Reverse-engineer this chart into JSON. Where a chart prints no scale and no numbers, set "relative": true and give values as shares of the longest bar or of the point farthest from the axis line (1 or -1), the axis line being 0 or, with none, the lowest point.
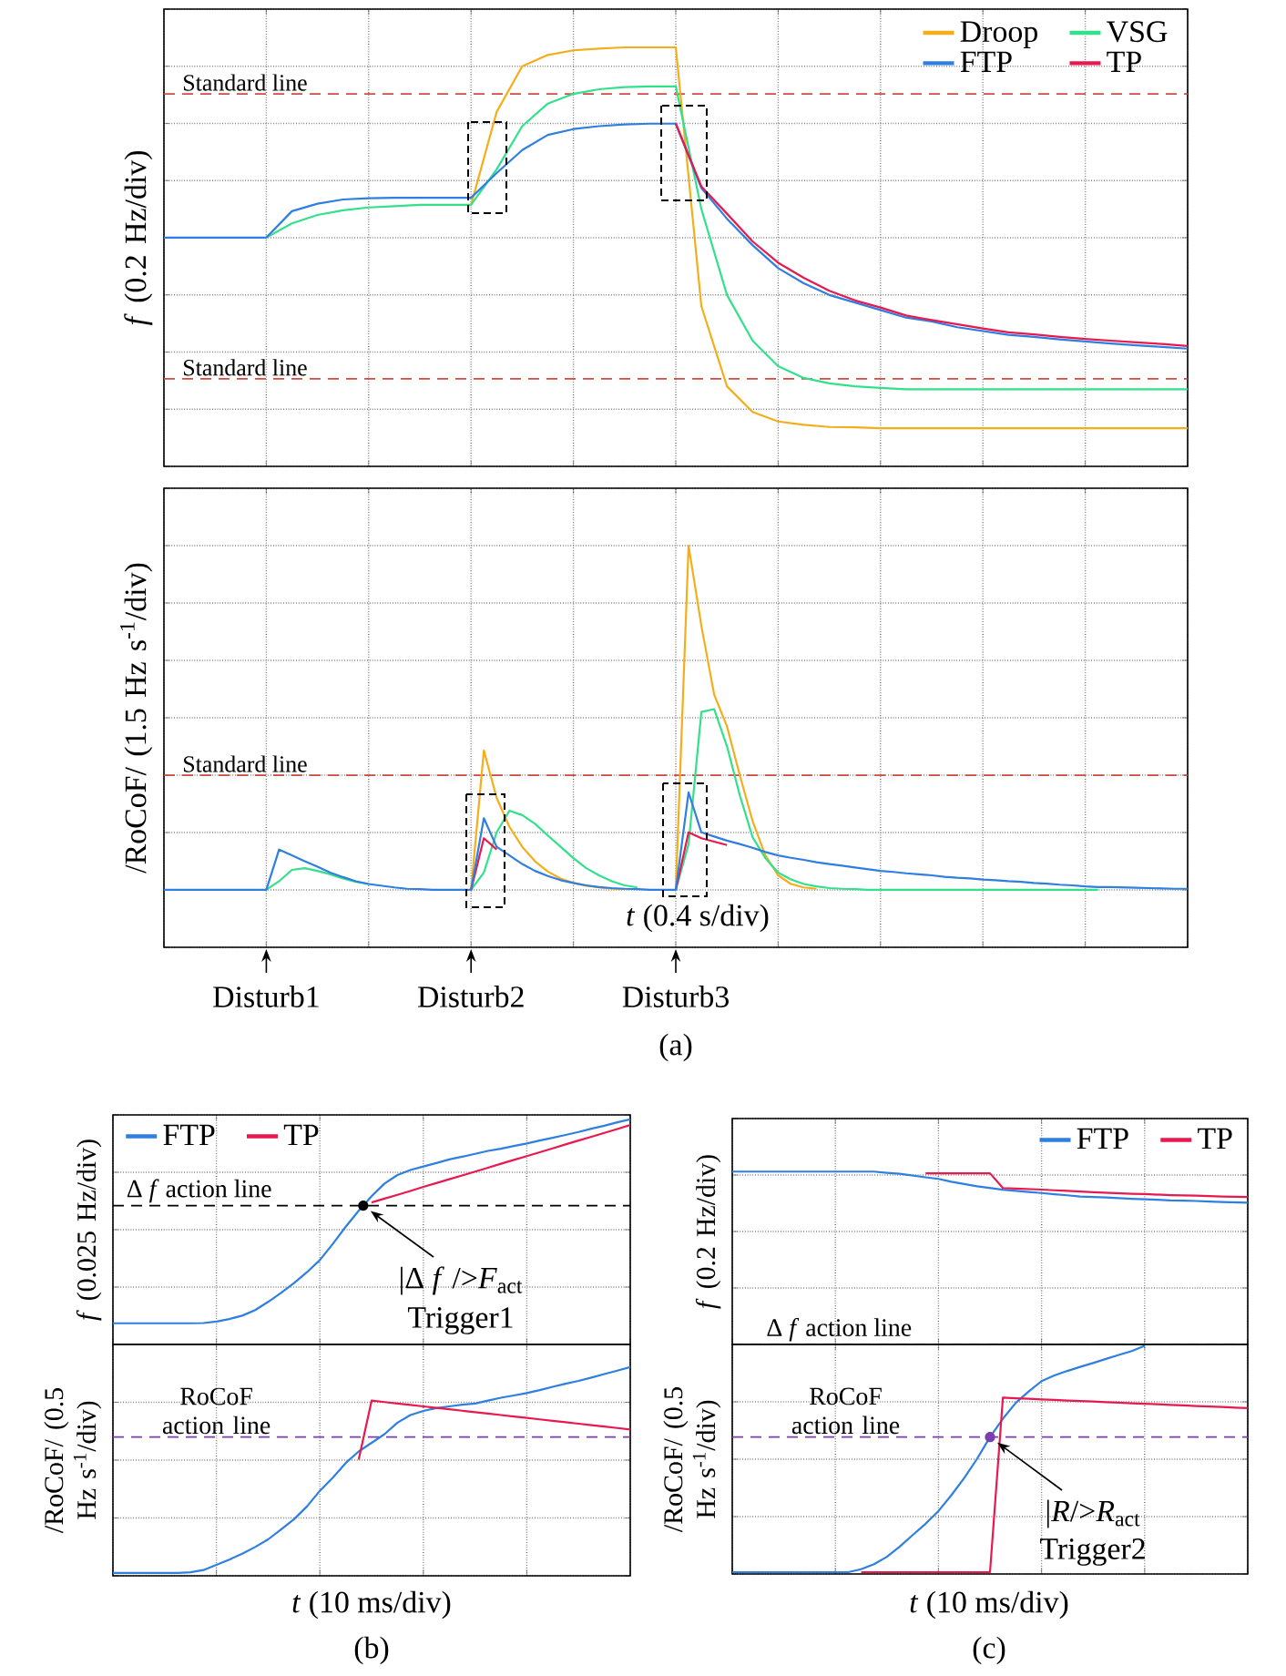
{
  "chart_data": [
    {
      "type": "line",
      "relative": true,
      "grid": true,
      "legend": "top right",
      "ylabel": "*f* (0.2 Hz/div)",
      "categories": [
        null,
        null,
        null,
        null,
        null,
        null,
        null,
        null,
        null,
        null,
        null,
        null,
        null,
        null,
        null,
        null,
        null,
        null,
        null,
        null,
        null,
        null,
        null,
        null,
        null,
        null,
        null,
        null,
        null,
        null,
        null,
        null,
        null,
        null,
        null,
        null,
        null,
        null,
        null,
        null,
        null
      ],
      "series": [
        {
          "name": "Droop",
          "color": "#f5ae1b",
          "values": [
            null,
            null,
            null,
            null,
            null,
            null,
            null,
            null,
            null,
            null,
            null,
            null,
            0.624,
            0.846,
            0.955,
            0.982,
            0.993,
            0.997,
            1.0,
            1.0,
            1.0,
            0.382,
            0.191,
            0.13,
            0.107,
            0.099,
            0.094,
            0.093,
            0.091,
            0.091,
            0.091,
            0.091,
            0.091,
            0.091,
            0.091,
            0.091,
            0.091,
            0.091,
            0.091,
            0.091,
            0.091
          ]
        },
        {
          "name": "VSG",
          "color": "#33e08c",
          "values": [
            null,
            null,
            null,
            null,
            0.546,
            0.58,
            0.6,
            0.611,
            0.618,
            0.621,
            0.624,
            0.624,
            0.624,
            0.709,
            0.812,
            0.866,
            0.889,
            0.9,
            0.905,
            0.907,
            0.907,
            0.614,
            0.409,
            0.3,
            0.239,
            0.211,
            0.198,
            0.191,
            0.187,
            0.184,
            0.184,
            0.184,
            0.184,
            0.184,
            0.184,
            0.184,
            0.184,
            0.184,
            0.184,
            0.184,
            0.184
          ]
        },
        {
          "name": "FTP",
          "color": "#2e7fe0",
          "values": [
            0.546,
            0.546,
            0.546,
            0.546,
            0.546,
            0.609,
            0.627,
            0.637,
            0.64,
            0.641,
            0.641,
            0.641,
            0.641,
            0.7,
            0.755,
            0.791,
            0.805,
            0.812,
            0.816,
            0.818,
            0.818,
            0.664,
            0.591,
            0.528,
            0.473,
            0.437,
            0.409,
            0.391,
            0.373,
            0.355,
            0.346,
            0.332,
            0.323,
            0.314,
            0.309,
            0.303,
            0.298,
            0.293,
            0.289,
            0.285,
            0.281
          ]
        },
        {
          "name": "TP",
          "color": "#e8194f",
          "values": [
            null,
            null,
            null,
            null,
            null,
            null,
            null,
            null,
            null,
            null,
            null,
            null,
            null,
            null,
            null,
            null,
            null,
            null,
            null,
            null,
            0.818,
            0.668,
            0.603,
            0.537,
            0.486,
            0.45,
            0.419,
            0.396,
            0.379,
            0.36,
            0.349,
            0.339,
            0.329,
            0.32,
            0.315,
            0.309,
            0.304,
            0.3,
            0.296,
            0.292,
            0.287
          ]
        }
      ],
      "ref_lines": [
        {
          "axis": "y",
          "value": 0.889,
          "label": "Standard line",
          "color": "#d24b3e",
          "line_style": "dashed"
        },
        {
          "axis": "y",
          "value": 0.209,
          "label": "Standard line",
          "color": "#d24b3e",
          "line_style": "dashed"
        }
      ]
    },
    {
      "type": "line",
      "relative": true,
      "grid": true,
      "ylabel": "/RoCoF/ (1.5 Hz s$^{-1}$/div)",
      "xlabel": "*t* (0.4 s/div)",
      "categories": [
        null,
        null,
        null,
        null,
        null,
        null,
        null,
        null,
        null,
        null,
        null,
        null,
        null,
        null,
        null,
        null,
        null,
        null,
        null,
        null,
        null,
        null,
        null,
        null,
        null,
        null,
        null,
        null,
        null,
        null,
        null,
        null,
        null,
        null,
        null,
        null,
        null,
        null,
        null,
        null,
        null,
        null,
        null,
        null,
        null,
        null,
        null,
        null,
        null,
        null,
        null,
        null,
        null,
        null,
        null,
        null,
        null,
        null,
        null,
        null,
        null,
        null,
        null,
        null,
        null,
        null,
        null,
        null,
        null,
        null,
        null,
        null,
        null,
        null,
        null,
        null,
        null,
        null,
        null,
        null,
        null
      ],
      "series": [
        {
          "color": "#f5ae1b",
          "values": [
            null,
            null,
            null,
            null,
            null,
            null,
            null,
            null,
            null,
            null,
            null,
            null,
            null,
            null,
            null,
            null,
            null,
            null,
            null,
            null,
            null,
            null,
            null,
            null,
            0,
            0.405,
            0.267,
            0.183,
            0.125,
            0.083,
            0.053,
            0.033,
            0.02,
            0.012,
            0.007,
            0.003,
            0.002,
            null,
            null,
            null,
            0,
            1.0,
            0.767,
            0.567,
            0.475,
            0.333,
            0.2,
            0.1,
            0.042,
            0.017,
            0.007,
            0.003,
            null,
            null,
            null,
            null,
            null,
            null,
            null,
            null,
            null,
            null,
            null,
            null,
            null,
            null,
            null,
            null,
            null,
            null,
            null,
            null,
            null,
            null,
            null,
            null,
            null,
            null,
            null,
            null,
            null
          ]
        },
        {
          "color": "#33e08c",
          "values": [
            null,
            null,
            null,
            null,
            null,
            null,
            null,
            null,
            0,
            0.025,
            0.058,
            0.063,
            0.055,
            0.045,
            0.033,
            0.023,
            0.017,
            null,
            null,
            null,
            null,
            null,
            null,
            null,
            0,
            0.05,
            0.167,
            0.23,
            0.217,
            0.192,
            0.158,
            0.125,
            0.092,
            0.063,
            0.042,
            0.025,
            0.013,
            0.007,
            null,
            null,
            0,
            0.133,
            0.517,
            0.525,
            0.417,
            0.275,
            0.153,
            0.092,
            0.05,
            0.03,
            0.017,
            0.01,
            0.005,
            0.003,
            0.002,
            0,
            0,
            0,
            0,
            0,
            0,
            0,
            0,
            0,
            0,
            0,
            0,
            0,
            0,
            0,
            0,
            0,
            0,
            0,
            null,
            null,
            null,
            null,
            null,
            null,
            null
          ]
        },
        {
          "color": "#e8194f",
          "values": [
            null,
            null,
            null,
            null,
            null,
            null,
            null,
            null,
            null,
            null,
            null,
            null,
            null,
            null,
            null,
            null,
            null,
            null,
            null,
            null,
            null,
            null,
            null,
            null,
            0,
            0.15,
            0.117,
            null,
            null,
            null,
            null,
            null,
            null,
            null,
            null,
            null,
            null,
            null,
            null,
            null,
            0,
            0.167,
            0.15,
            0.14,
            0.13,
            null,
            null,
            null,
            null,
            null,
            null,
            null,
            null,
            null,
            null,
            null,
            null,
            null,
            null,
            null,
            null,
            null,
            null,
            null,
            null,
            null,
            null,
            null,
            null,
            null,
            null,
            null,
            null,
            null,
            null,
            null,
            null,
            null,
            null,
            null,
            null
          ]
        },
        {
          "color": "#2e7fe0",
          "values": [
            0,
            0,
            0,
            0,
            0,
            0,
            0,
            0,
            0,
            0.117,
            0.1,
            0.083,
            0.067,
            0.05,
            0.037,
            0.025,
            0.017,
            0.012,
            0.007,
            0.003,
            0.002,
            0,
            0,
            0,
            0,
            0.208,
            0.125,
            0.1,
            0.075,
            0.055,
            0.04,
            0.028,
            0.02,
            0.013,
            0.008,
            0.005,
            0.003,
            0.002,
            0,
            0,
            0,
            0.283,
            0.167,
            0.155,
            0.143,
            0.133,
            0.122,
            0.11,
            0.1,
            0.093,
            0.087,
            0.08,
            0.075,
            0.07,
            0.065,
            0.06,
            0.055,
            0.052,
            0.048,
            0.045,
            0.042,
            0.038,
            0.035,
            0.033,
            0.03,
            0.028,
            0.025,
            0.023,
            0.02,
            0.018,
            0.015,
            0.013,
            0.01,
            0.008,
            0.008,
            0.007,
            0.006,
            0.005,
            0.004,
            0.003,
            0.003
          ]
        }
      ],
      "ref_lines": [
        {
          "axis": "y",
          "value": 0.333,
          "label": "Standard line",
          "color": "#d24b3e",
          "line_style": "dashed"
        }
      ],
      "annotations": [
        "Disturb1",
        "Disturb2",
        "Disturb3",
        "(a)"
      ]
    },
    {
      "type": "line",
      "relative": true,
      "grid": true,
      "legend": "top left",
      "ylabel": "*f* (0.025 Hz/div)",
      "categories": [
        null,
        null,
        null,
        null,
        null,
        null,
        null,
        null,
        null,
        null,
        null,
        null,
        null,
        null,
        null,
        null,
        null,
        null,
        null,
        null,
        null,
        null,
        null,
        null,
        null,
        null,
        null,
        null,
        null,
        null,
        null,
        null,
        null,
        null,
        null,
        null,
        null,
        null,
        null,
        null,
        null
      ],
      "series": [
        {
          "name": "FTP",
          "color": "#2e7fe0",
          "values": [
            0.094,
            0.094,
            0.094,
            0.094,
            0.094,
            0.094,
            0.094,
            0.095,
            0.102,
            0.113,
            0.128,
            0.153,
            0.189,
            0.229,
            0.273,
            0.321,
            0.375,
            0.447,
            0.523,
            0.594,
            0.659,
            0.715,
            0.753,
            0.775,
            0.791,
            0.806,
            0.822,
            0.834,
            0.847,
            0.86,
            0.87,
            0.882,
            0.893,
            0.906,
            0.918,
            0.931,
            0.944,
            0.959,
            0.972,
            0.987,
            1.0
          ]
        },
        {
          "name": "TP",
          "color": "#e8194f",
          "values": [
            null,
            null,
            null,
            null,
            null,
            null,
            null,
            null,
            null,
            null,
            null,
            null,
            null,
            null,
            null,
            null,
            null,
            null,
            null,
            null,
            0.631,
            0.648,
            0.665,
            0.682,
            0.7,
            0.717,
            0.734,
            0.751,
            0.768,
            0.785,
            0.803,
            0.82,
            0.837,
            0.854,
            0.871,
            0.889,
            0.906,
            0.923,
            0.94,
            0.957,
            0.975
          ]
        }
      ],
      "ref_lines": [
        {
          "axis": "y",
          "value": 0.617,
          "label": "Δ *f* action line",
          "color": "#000000",
          "line_style": "dashed"
        }
      ],
      "annotations": [
        {
          "text": "|Δ *f* />*F*$_{act}$",
          "y": 0.617
        },
        "Trigger1"
      ]
    },
    {
      "type": "line",
      "relative": true,
      "grid": true,
      "ylabel": "/RoCoF/ (0.5 Hz s$^{-1}$/div)",
      "xlabel": "*t* (10 ms/div)",
      "categories": [
        null,
        null,
        null,
        null,
        null,
        null,
        null,
        null,
        null,
        null,
        null,
        null,
        null,
        null,
        null,
        null,
        null,
        null,
        null,
        null,
        null,
        null,
        null,
        null,
        null,
        null,
        null,
        null,
        null,
        null,
        null,
        null,
        null,
        null,
        null,
        null,
        null,
        null,
        null,
        null,
        null
      ],
      "series": [
        {
          "color": "#2e7fe0",
          "values": [
            0,
            0,
            0,
            0,
            0,
            0,
            0.003,
            0.014,
            0.039,
            0.065,
            0.093,
            0.126,
            0.163,
            0.211,
            0.261,
            0.323,
            0.399,
            0.463,
            0.534,
            0.59,
            0.632,
            0.674,
            0.73,
            0.767,
            0.787,
            0.801,
            0.809,
            0.817,
            0.823,
            0.837,
            0.851,
            0.862,
            0.874,
            0.888,
            0.904,
            0.919,
            0.933,
            0.949,
            0.966,
            0.983,
            1.0
          ]
        },
        {
          "color": "#e8194f",
          "values": [
            null,
            null,
            null,
            null,
            null,
            null,
            null,
            null,
            null,
            null,
            null,
            null,
            null,
            null,
            null,
            null,
            null,
            null,
            null,
            0.55,
            0.837,
            0.83,
            0.823,
            0.816,
            0.809,
            0.802,
            0.795,
            0.788,
            0.781,
            0.774,
            0.767,
            0.76,
            0.753,
            0.746,
            0.739,
            0.732,
            0.725,
            0.718,
            0.711,
            0.704,
            0.697
          ]
        }
      ],
      "ref_lines": [
        {
          "axis": "y",
          "value": 0.66,
          "label": "RoCoF action line",
          "color": "#7b3fb0",
          "line_style": "dashed"
        }
      ],
      "annotations": [
        "(b)"
      ]
    },
    {
      "type": "line",
      "relative": true,
      "grid": true,
      "legend": "top right",
      "ylabel": "*f* (0.2 Hz/div)",
      "categories": [
        null,
        null,
        null,
        null,
        null,
        null,
        null,
        null,
        null,
        null,
        null,
        null,
        null,
        null,
        null,
        null,
        null,
        null,
        null,
        null,
        null,
        null,
        null,
        null,
        null,
        null,
        null,
        null,
        null,
        null,
        null,
        null,
        null,
        null,
        null,
        null,
        null,
        null,
        null,
        null,
        null
      ],
      "series": [
        {
          "name": "FTP",
          "color": "#2e7fe0",
          "values": [
            1.0,
            1.0,
            1.0,
            1.0,
            1.0,
            1.0,
            1.0,
            1.0,
            1.0,
            1.0,
            1.0,
            1.0,
            0.993,
            0.987,
            0.977,
            0.967,
            0.958,
            0.941,
            0.928,
            0.915,
            0.905,
            0.895,
            0.889,
            0.882,
            0.876,
            0.869,
            0.863,
            0.856,
            0.853,
            0.85,
            0.846,
            0.843,
            0.84,
            0.837,
            0.833,
            0.832,
            0.83,
            0.827,
            0.824,
            0.822,
            0.82
          ]
        },
        {
          "name": "TP",
          "color": "#e8194f",
          "values": [
            null,
            null,
            null,
            null,
            null,
            null,
            null,
            null,
            null,
            null,
            null,
            null,
            null,
            null,
            null,
            0.99,
            0.99,
            0.99,
            0.99,
            0.99,
            0.99,
            0.905,
            0.902,
            0.899,
            0.896,
            0.892,
            0.889,
            0.885,
            0.881,
            0.878,
            0.875,
            0.872,
            0.87,
            0.867,
            0.864,
            0.862,
            0.861,
            0.858,
            0.856,
            0.854,
            0.853
          ]
        }
      ],
      "ref_lines": [
        {
          "axis": "y",
          "value": 0,
          "label": "Δ *f* action line",
          "color": "#000000",
          "line_style": "dashed"
        }
      ]
    },
    {
      "type": "line",
      "relative": true,
      "grid": true,
      "ylabel": "/RoCoF/ (0.5 Hz s$^{-1}$/div)",
      "xlabel": "*t* (10 ms/div)",
      "categories": [
        null,
        null,
        null,
        null,
        null,
        null,
        null,
        null,
        null,
        null,
        null,
        null,
        null,
        null,
        null,
        null,
        null,
        null,
        null,
        null,
        null,
        null,
        null,
        null,
        null,
        null,
        null,
        null,
        null,
        null,
        null,
        null,
        null,
        null,
        null,
        null,
        null,
        null,
        null,
        null,
        null
      ],
      "series": [
        {
          "color": "#2e7fe0",
          "values": [
            0,
            0,
            0,
            0,
            0,
            0,
            0,
            0,
            0,
            0,
            0.013,
            0.035,
            0.068,
            0.113,
            0.164,
            0.214,
            0.27,
            0.34,
            0.416,
            0.501,
            0.597,
            0.678,
            0.748,
            0.798,
            0.844,
            0.869,
            0.889,
            0.907,
            0.924,
            0.942,
            0.96,
            0.977,
            1.0,
            null,
            null,
            null,
            null,
            null,
            null,
            null,
            null
          ]
        },
        {
          "color": "#e8194f",
          "values": [
            null,
            null,
            null,
            null,
            null,
            null,
            null,
            null,
            null,
            null,
            0,
            0,
            0,
            0,
            0,
            0,
            0,
            0,
            0,
            0,
            0,
            0.771,
            0.768,
            0.766,
            0.763,
            0.761,
            0.758,
            0.756,
            0.754,
            0.751,
            0.749,
            0.746,
            0.744,
            0.742,
            0.739,
            0.737,
            0.734,
            0.732,
            0.73,
            0.727,
            0.725
          ]
        }
      ],
      "ref_lines": [
        {
          "axis": "y",
          "value": 0.597,
          "label": "RoCoF action line",
          "color": "#7b3fb0",
          "line_style": "dashed"
        }
      ],
      "annotations": [
        {
          "text": "|*R*/>*R*$_{act}$",
          "y": 0.597
        },
        "Trigger2",
        "(c)"
      ]
    }
  ]
}
